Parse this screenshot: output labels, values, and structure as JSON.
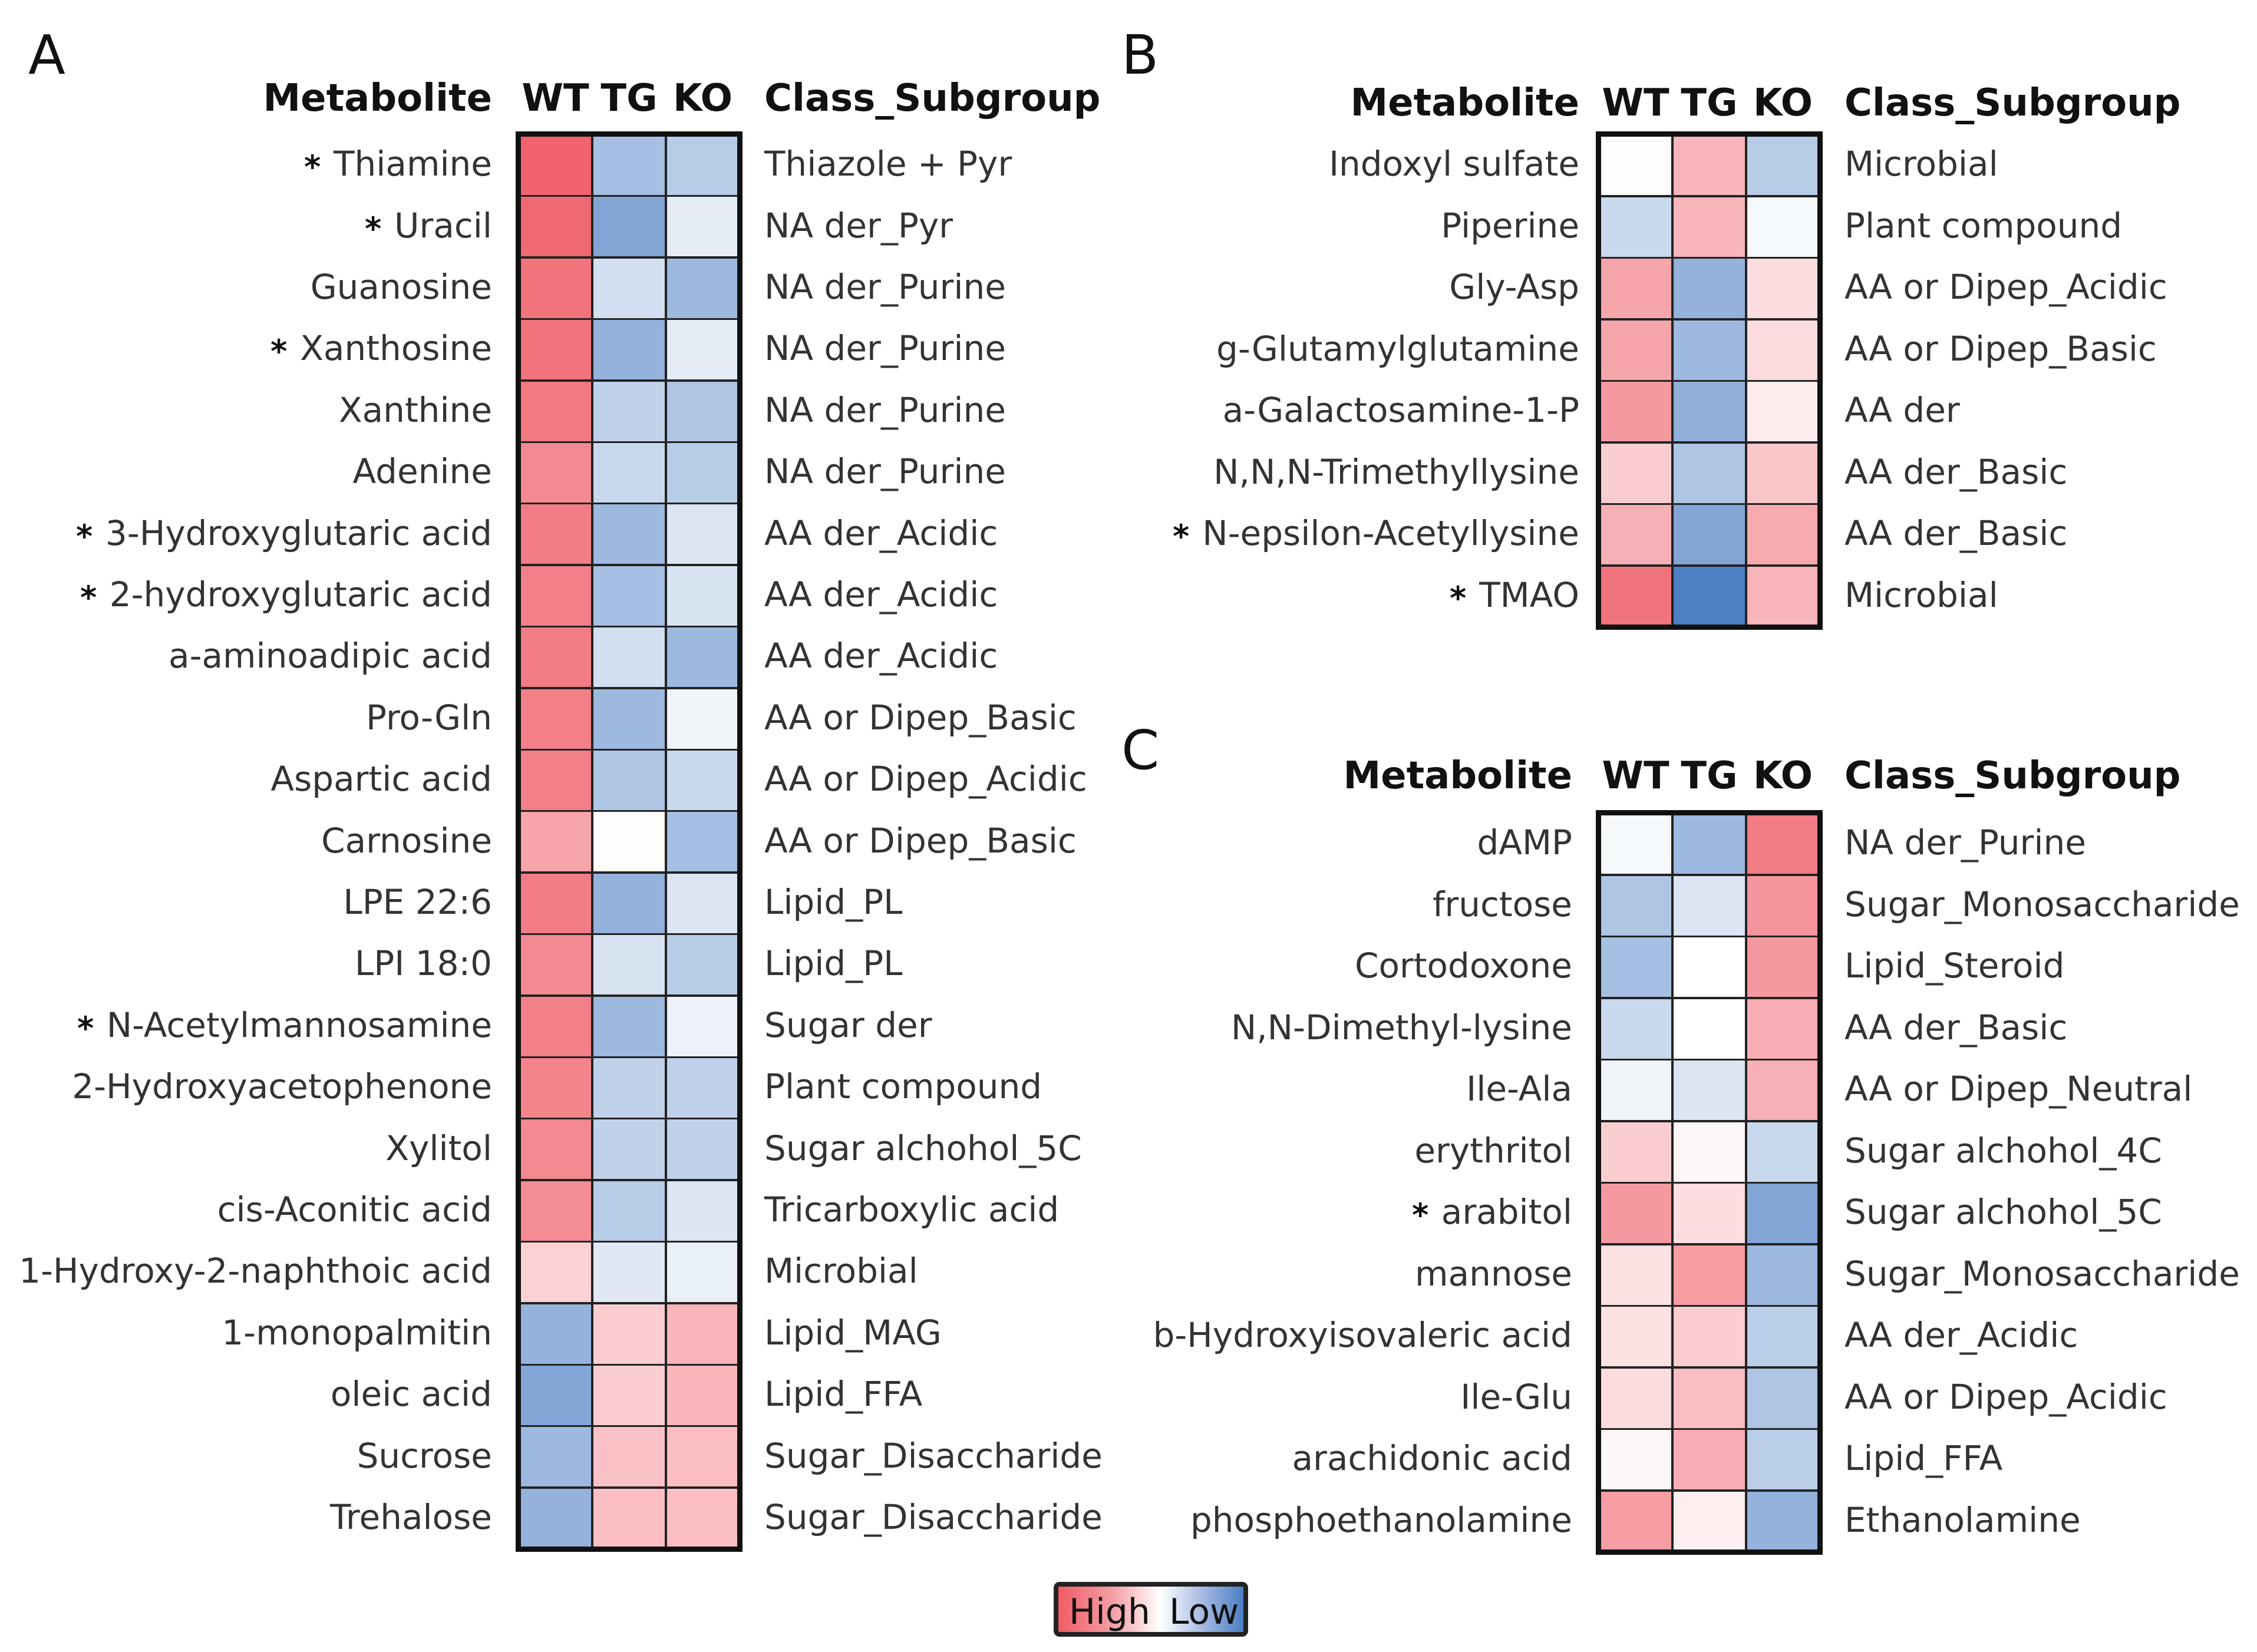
{
  "chart_data": [
    {
      "type": "heatmap",
      "panel": "A",
      "columns": [
        "WT",
        "TG",
        "KO"
      ],
      "header": {
        "metabolite": "Metabolite",
        "class": "Class_Subgroup"
      },
      "rows": [
        {
          "name": "Thiamine",
          "star": true,
          "class": "Thiazole + Pyr",
          "values": [
            0.95,
            -0.5,
            -0.4
          ]
        },
        {
          "name": "Uracil",
          "star": true,
          "class": "NA der_Pyr",
          "values": [
            0.92,
            -0.7,
            -0.15
          ]
        },
        {
          "name": "Guanosine",
          "star": false,
          "class": "NA der_Purine",
          "values": [
            0.85,
            -0.25,
            -0.55
          ]
        },
        {
          "name": "Xanthosine",
          "star": true,
          "class": "NA der_Purine",
          "values": [
            0.85,
            -0.6,
            -0.15
          ]
        },
        {
          "name": "Xanthine",
          "star": false,
          "class": "NA der_Purine",
          "values": [
            0.82,
            -0.35,
            -0.45
          ]
        },
        {
          "name": "Adenine",
          "star": false,
          "class": "NA der_Purine",
          "values": [
            0.72,
            -0.3,
            -0.4
          ]
        },
        {
          "name": "3-Hydroxyglutaric acid",
          "star": true,
          "class": "AA der_Acidic",
          "values": [
            0.8,
            -0.55,
            -0.2
          ]
        },
        {
          "name": "2-hydroxyglutaric acid",
          "star": true,
          "class": "AA der_Acidic",
          "values": [
            0.78,
            -0.5,
            -0.22
          ]
        },
        {
          "name": "a-aminoadipic acid",
          "star": false,
          "class": "AA der_Acidic",
          "values": [
            0.8,
            -0.25,
            -0.55
          ]
        },
        {
          "name": "Pro-Gln",
          "star": false,
          "class": "AA or Dipep_Basic",
          "values": [
            0.78,
            -0.55,
            -0.08
          ]
        },
        {
          "name": "Aspartic acid",
          "star": false,
          "class": "AA or Dipep_Acidic",
          "values": [
            0.78,
            -0.45,
            -0.3
          ]
        },
        {
          "name": "Carnosine",
          "star": false,
          "class": "AA or Dipep_Basic",
          "values": [
            0.55,
            0.02,
            -0.5
          ]
        },
        {
          "name": "LPE 22:6",
          "star": false,
          "class": "Lipid_PL",
          "values": [
            0.8,
            -0.6,
            -0.2
          ]
        },
        {
          "name": "LPI 18:0",
          "star": false,
          "class": "Lipid_PL",
          "values": [
            0.72,
            -0.22,
            -0.4
          ]
        },
        {
          "name": "N-Acetylmannosamine",
          "star": true,
          "class": "Sugar der",
          "values": [
            0.78,
            -0.55,
            -0.1
          ]
        },
        {
          "name": "2-Hydroxyacetophenone",
          "star": false,
          "class": "Plant compound",
          "values": [
            0.75,
            -0.35,
            -0.35
          ]
        },
        {
          "name": "Xylitol",
          "star": false,
          "class": "Sugar alchohol_5C",
          "values": [
            0.72,
            -0.35,
            -0.35
          ]
        },
        {
          "name": "cis-Aconitic acid",
          "star": false,
          "class": "Tricarboxylic acid",
          "values": [
            0.7,
            -0.4,
            -0.2
          ]
        },
        {
          "name": "1-Hydroxy-2-naphthoic acid",
          "star": false,
          "class": "Microbial",
          "values": [
            0.28,
            -0.18,
            -0.12
          ]
        },
        {
          "name": "1-monopalmitin",
          "star": false,
          "class": "Lipid_MAG",
          "values": [
            -0.6,
            0.3,
            0.45
          ]
        },
        {
          "name": "oleic acid",
          "star": false,
          "class": "Lipid_FFA",
          "values": [
            -0.7,
            0.3,
            0.45
          ]
        },
        {
          "name": "Sucrose",
          "star": false,
          "class": "Sugar_Disaccharide",
          "values": [
            -0.55,
            0.38,
            0.4
          ]
        },
        {
          "name": "Trehalose",
          "star": false,
          "class": "Sugar_Disaccharide",
          "values": [
            -0.6,
            0.4,
            0.4
          ]
        }
      ]
    },
    {
      "type": "heatmap",
      "panel": "B",
      "columns": [
        "WT",
        "TG",
        "KO"
      ],
      "header": {
        "metabolite": "Metabolite",
        "class": "Class_Subgroup"
      },
      "rows": [
        {
          "name": "Indoxyl sulfate",
          "star": false,
          "class": "Microbial",
          "values": [
            0.02,
            0.45,
            -0.4
          ]
        },
        {
          "name": "Piperine",
          "star": false,
          "class": "Plant compound",
          "values": [
            -0.3,
            0.45,
            -0.05
          ]
        },
        {
          "name": "Gly-Asp",
          "star": false,
          "class": "AA or Dipep_Acidic",
          "values": [
            0.55,
            -0.6,
            0.2
          ]
        },
        {
          "name": "g-Glutamylglutamine",
          "star": false,
          "class": "AA or Dipep_Basic",
          "values": [
            0.55,
            -0.55,
            0.22
          ]
        },
        {
          "name": "a-Galactosamine-1-P",
          "star": false,
          "class": "AA der",
          "values": [
            0.62,
            -0.62,
            0.12
          ]
        },
        {
          "name": "N,N,N-Trimethyllysine",
          "star": false,
          "class": "AA der_Basic",
          "values": [
            0.3,
            -0.45,
            0.35
          ]
        },
        {
          "name": "N-epsilon-Acetyllysine",
          "star": true,
          "class": "AA der_Basic",
          "values": [
            0.48,
            -0.7,
            0.52
          ]
        },
        {
          "name": "TMAO",
          "star": true,
          "class": "Microbial",
          "values": [
            0.85,
            -1.0,
            0.45
          ]
        }
      ]
    },
    {
      "type": "heatmap",
      "panel": "C",
      "columns": [
        "WT",
        "TG",
        "KO"
      ],
      "header": {
        "metabolite": "Metabolite",
        "class": "Class_Subgroup"
      },
      "rows": [
        {
          "name": "dAMP",
          "star": false,
          "class": "NA der_Purine",
          "values": [
            -0.05,
            -0.55,
            0.8
          ]
        },
        {
          "name": "fructose",
          "star": false,
          "class": "Sugar_Monosaccharide",
          "values": [
            -0.45,
            -0.2,
            0.65
          ]
        },
        {
          "name": "Cortodoxone",
          "star": false,
          "class": "Lipid_Steroid",
          "values": [
            -0.5,
            0.0,
            0.62
          ]
        },
        {
          "name": "N,N-Dimethyl-lysine",
          "star": false,
          "class": "AA der_Basic",
          "values": [
            -0.3,
            0.0,
            0.5
          ]
        },
        {
          "name": "Ile-Ala",
          "star": false,
          "class": "AA or Dipep_Neutral",
          "values": [
            -0.08,
            -0.2,
            0.48
          ]
        },
        {
          "name": "erythritol",
          "star": false,
          "class": "Sugar alchohol_4C",
          "values": [
            0.3,
            0.05,
            -0.3
          ]
        },
        {
          "name": "arabitol",
          "star": true,
          "class": "Sugar alchohol_5C",
          "values": [
            0.62,
            0.2,
            -0.7
          ]
        },
        {
          "name": "mannose",
          "star": false,
          "class": "Sugar_Monosaccharide",
          "values": [
            0.18,
            0.6,
            -0.55
          ]
        },
        {
          "name": "b-Hydroxyisovaleric acid",
          "star": false,
          "class": "AA der_Acidic",
          "values": [
            0.18,
            0.3,
            -0.38
          ]
        },
        {
          "name": "Ile-Glu",
          "star": false,
          "class": "AA or Dipep_Acidic",
          "values": [
            0.22,
            0.4,
            -0.45
          ]
        },
        {
          "name": "arachidonic acid",
          "star": false,
          "class": "Lipid_FFA",
          "values": [
            0.05,
            0.5,
            -0.38
          ]
        },
        {
          "name": "phosphoethanolamine",
          "star": false,
          "class": "Ethanolamine",
          "values": [
            0.6,
            0.1,
            -0.6
          ]
        }
      ]
    }
  ],
  "legend": {
    "high": "High",
    "low": "Low"
  },
  "colors": {
    "high": "#ef5b66",
    "mid": "#ffffff",
    "low": "#4c7fc4",
    "border": "#111111"
  }
}
